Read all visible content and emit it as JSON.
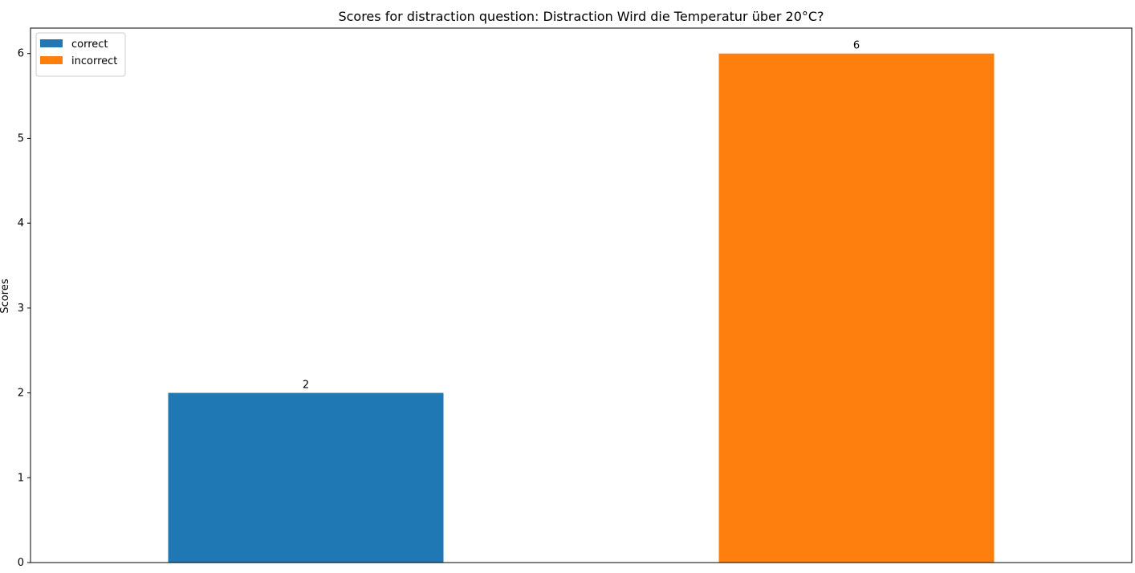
{
  "chart_data": {
    "type": "bar",
    "title": "Scores for distraction question: Distraction Wird die Temperatur über 20°C?",
    "xlabel": "",
    "ylabel": "Scores",
    "ylim": [
      0,
      6.3
    ],
    "yticks": [
      0,
      1,
      2,
      3,
      4,
      5,
      6
    ],
    "grid": false,
    "legend_position": "top-left",
    "series": [
      {
        "name": "correct",
        "value": 2,
        "color": "#1f77b4"
      },
      {
        "name": "incorrect",
        "value": 6,
        "color": "#ff7f0e"
      }
    ]
  }
}
